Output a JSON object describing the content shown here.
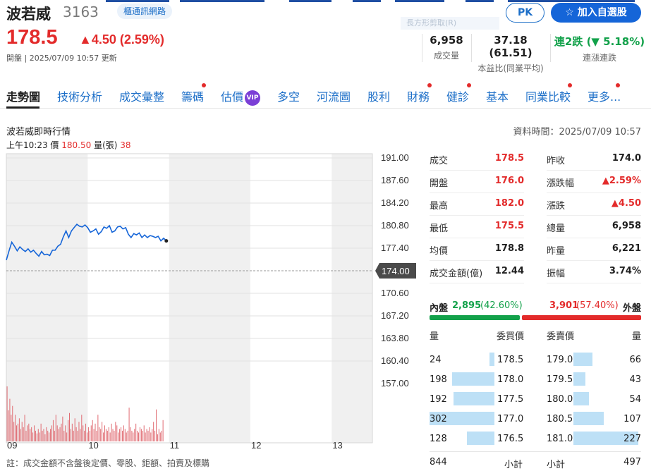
{
  "header": {
    "stock_name": "波若威",
    "stock_code": "3163",
    "industry_tag": "櫃通訊網路",
    "ghost_text": "長方形剪取(R)",
    "pk_label": "PK",
    "watch_label": "☆ 加入自選股",
    "price": "178.5",
    "change": "▲4.50 (2.59%)",
    "status": "開盤 | 2025/07/09 10:57 更新"
  },
  "summary": [
    {
      "value": "6,958",
      "label": "成交量"
    },
    {
      "value": "37.18 (61.51)",
      "label": "本益比(同業平均)"
    },
    {
      "value": "連2跌 (▼ 5.18%)",
      "label": "連漲連跌"
    }
  ],
  "tabs": [
    "走勢圖",
    "技術分析",
    "成交彙整",
    "籌碼",
    "估價",
    "多空",
    "河流圖",
    "股利",
    "財務",
    "健診",
    "基本",
    "同業比較",
    "更多..."
  ],
  "vip_label": "VIP",
  "chart_section": {
    "title": "波若威即時行情",
    "data_time": "資料時間：2025/07/09 10:57",
    "hover_time": "上午10:23",
    "hover_price_label": "價",
    "hover_price": "180.50",
    "hover_volume_label": "量(張)",
    "hover_volume": "38",
    "footnote": "註：成交金額不含盤後定價、零股、鉅額、拍賣及標購"
  },
  "chart_data": {
    "type": "line",
    "title": "",
    "xlabel": "",
    "ylabel": "",
    "x_ticks": [
      "09",
      "10",
      "11",
      "12",
      "13"
    ],
    "y_ticks": [
      "191.00",
      "187.60",
      "184.20",
      "180.80",
      "177.40",
      "170.60",
      "167.20",
      "163.80",
      "160.40",
      "157.00"
    ],
    "ylim": [
      157.0,
      191.0
    ],
    "reference_price": "174.00",
    "x_range_minutes": [
      0,
      270
    ],
    "series": [
      {
        "x": [
          0,
          2,
          4,
          6,
          8,
          10,
          12,
          14,
          16,
          18,
          20,
          22,
          24,
          26,
          28,
          30,
          32,
          34,
          36,
          38,
          40,
          42,
          44,
          46,
          48,
          50,
          52,
          54,
          56,
          58,
          60,
          62,
          64,
          66,
          68,
          70,
          72,
          74,
          76,
          78,
          80,
          82,
          84,
          86,
          88,
          90,
          92,
          94,
          96,
          98,
          100,
          102,
          104,
          106,
          108,
          110,
          112,
          114,
          116,
          118
        ],
        "values": [
          175.6,
          177.0,
          178.3,
          177.7,
          177.0,
          177.6,
          177.2,
          176.9,
          177.3,
          176.8,
          177.1,
          176.6,
          176.2,
          176.9,
          176.4,
          176.5,
          176.3,
          177.1,
          177.1,
          177.7,
          178.0,
          179.1,
          180.0,
          179.0,
          180.0,
          180.5,
          181.0,
          180.7,
          180.6,
          180.9,
          180.5,
          179.8,
          180.0,
          180.3,
          179.5,
          179.9,
          180.6,
          180.4,
          180.8,
          179.8,
          180.0,
          180.6,
          180.7,
          180.3,
          180.5,
          179.5,
          179.0,
          179.6,
          179.4,
          179.7,
          179.0,
          179.4,
          179.0,
          179.3,
          179.2,
          179.0,
          179.2,
          178.5,
          178.9,
          178.5
        ]
      }
    ],
    "volume_series": [
      62,
      35,
      48,
      30,
      40,
      22,
      30,
      18,
      20,
      26,
      14,
      22,
      16,
      30,
      12,
      18,
      20,
      14,
      16,
      10,
      18,
      12,
      9,
      14,
      10,
      20,
      12,
      14,
      8,
      16,
      12,
      10,
      14,
      18,
      24,
      12,
      30,
      18,
      14,
      16,
      20,
      28,
      12,
      18,
      10,
      24,
      32,
      14,
      20,
      12,
      26,
      16,
      12,
      22,
      14,
      30,
      18,
      12,
      20,
      10,
      16,
      12,
      18,
      24,
      14,
      20,
      12,
      30,
      16,
      14,
      22,
      10,
      18,
      14,
      12,
      16,
      10,
      20,
      14,
      12,
      22,
      18,
      10,
      14,
      16,
      12,
      18,
      14,
      10,
      12,
      38,
      16,
      12,
      10,
      14,
      20,
      12,
      10,
      16,
      14,
      12,
      18,
      10,
      14,
      12,
      16,
      10,
      14,
      22,
      12,
      36,
      8,
      14,
      10,
      12,
      24
    ]
  },
  "quote": [
    {
      "label": "成交",
      "value": "178.5",
      "color": "red"
    },
    {
      "label": "昨收",
      "value": "174.0",
      "color": "black"
    },
    {
      "label": "開盤",
      "value": "176.0",
      "color": "red"
    },
    {
      "label": "漲跌幅",
      "value": "▲2.59%",
      "color": "red"
    },
    {
      "label": "最高",
      "value": "182.0",
      "color": "red"
    },
    {
      "label": "漲跌",
      "value": "▲4.50",
      "color": "red"
    },
    {
      "label": "最低",
      "value": "175.5",
      "color": "red"
    },
    {
      "label": "總量",
      "value": "6,958",
      "color": "black"
    },
    {
      "label": "均價",
      "value": "178.8",
      "color": "black"
    },
    {
      "label": "昨量",
      "value": "6,221",
      "color": "black"
    },
    {
      "label": "成交金額(億)",
      "value": "12.44",
      "color": "black"
    },
    {
      "label": "振幅",
      "value": "3.74%",
      "color": "black"
    }
  ],
  "inout": {
    "in_label": "內盤",
    "in_value": "2,895",
    "in_pct": "(42.60%)",
    "in_fraction": 0.426,
    "out_value": "3,901",
    "out_pct": "(57.40%)",
    "out_label": "外盤"
  },
  "book": {
    "bid_vol_head": "量",
    "bid_price_head": "委買價",
    "ask_price_head": "委賣價",
    "ask_vol_head": "量",
    "bids": [
      {
        "vol": "24",
        "price": "178.5",
        "vol_num": 24
      },
      {
        "vol": "198",
        "price": "178.0",
        "vol_num": 198
      },
      {
        "vol": "192",
        "price": "177.5",
        "vol_num": 192
      },
      {
        "vol": "302",
        "price": "177.0",
        "vol_num": 302
      },
      {
        "vol": "128",
        "price": "176.5",
        "vol_num": 128
      }
    ],
    "asks": [
      {
        "price": "179.0",
        "vol": "66",
        "vol_num": 66
      },
      {
        "price": "179.5",
        "vol": "43",
        "vol_num": 43
      },
      {
        "price": "180.0",
        "vol": "54",
        "vol_num": 54
      },
      {
        "price": "180.5",
        "vol": "107",
        "vol_num": 107
      },
      {
        "price": "181.0",
        "vol": "227",
        "vol_num": 227
      }
    ],
    "bid_total": "844",
    "bid_total_label": "小計",
    "ask_total_label": "小計",
    "ask_total": "497"
  },
  "colors": {
    "up": "#e32b2b",
    "down": "#12a14a",
    "line": "#1565d8",
    "volume": "#e06b72",
    "accent": "#1d6fc8"
  }
}
